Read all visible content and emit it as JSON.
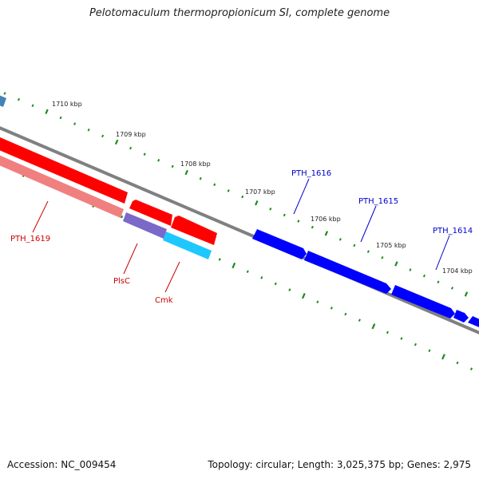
{
  "title": "Pelotomaculum thermopropionicum SI, complete genome",
  "footer": {
    "accession": "Accession: NC_009454",
    "topology": "Topology: circular; Length: 3,025,375 bp; Genes: 2,975"
  },
  "colors": {
    "backbone": "#808080",
    "tick": "#1f8a1f",
    "forward_gene": "#ff0000",
    "forward_gene_light": "#f08080",
    "reverse_gene": "#0000ff",
    "purple_gene": "#7b68c8",
    "cyan_gene": "#1ec8ff",
    "red_label": "#cc0000",
    "blue_label": "#0000cc"
  },
  "kbp_labels": [
    "1710 kbp",
    "1709 kbp",
    "1708 kbp",
    "1707 kbp",
    "1706 kbp",
    "1705 kbp",
    "1704 kbp"
  ],
  "gene_labels": {
    "pth1619": "PTH_1619",
    "plsc": "PlsC",
    "cmk": "Cmk",
    "pth1616": "PTH_1616",
    "pth1615": "PTH_1615",
    "pth1614": "PTH_1614"
  }
}
